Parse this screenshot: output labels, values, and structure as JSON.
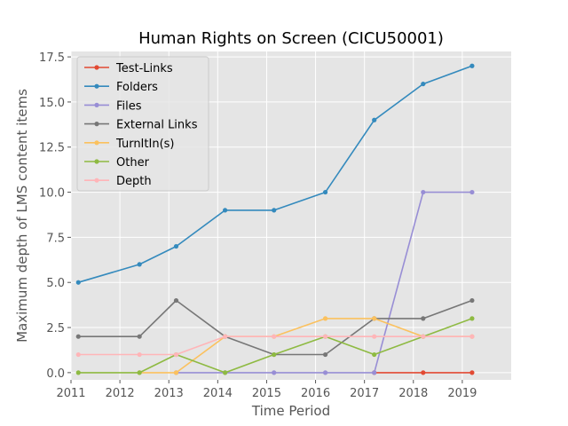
{
  "chart_data": {
    "type": "line",
    "title": "Human Rights on Screen (CICU50001)",
    "xlabel": "Time Period",
    "ylabel": "Maximum depth of LMS content items",
    "xlim": [
      2011,
      2020
    ],
    "ylim": [
      -0.4,
      17.8
    ],
    "xticks": [
      2011,
      2012,
      2013,
      2014,
      2015,
      2016,
      2017,
      2018,
      2019
    ],
    "xtick_labels": [
      "2011",
      "2012",
      "2013",
      "2014",
      "2015",
      "2016",
      "2017",
      "2018",
      "2019"
    ],
    "yticks": [
      0.0,
      2.5,
      5.0,
      7.5,
      10.0,
      12.5,
      15.0,
      17.5
    ],
    "ytick_labels": [
      "0.0",
      "2.5",
      "5.0",
      "7.5",
      "10.0",
      "12.5",
      "15.0",
      "17.5"
    ],
    "grid": true,
    "legend_position": "top-left",
    "x": [
      2011.15,
      2012.4,
      2013.15,
      2014.15,
      2015.15,
      2016.2,
      2017.2,
      2018.2,
      2019.2
    ],
    "series": [
      {
        "name": "Test-Links",
        "color": "#E24A33",
        "points": [
          [
            2017.2,
            0
          ],
          [
            2018.2,
            0
          ],
          [
            2019.2,
            0
          ]
        ]
      },
      {
        "name": "Folders",
        "color": "#348ABD",
        "points": [
          [
            2011.15,
            5
          ],
          [
            2012.4,
            6
          ],
          [
            2013.15,
            7
          ],
          [
            2014.15,
            9
          ],
          [
            2015.15,
            9
          ],
          [
            2016.2,
            10
          ],
          [
            2017.2,
            14
          ],
          [
            2018.2,
            16
          ],
          [
            2019.2,
            17
          ]
        ]
      },
      {
        "name": "Files",
        "color": "#988ED5",
        "points": [
          [
            2013.15,
            0
          ],
          [
            2014.15,
            0
          ],
          [
            2015.15,
            0
          ],
          [
            2016.2,
            0
          ],
          [
            2017.2,
            0
          ],
          [
            2018.2,
            10
          ],
          [
            2019.2,
            10
          ]
        ]
      },
      {
        "name": "External Links",
        "color": "#777777",
        "points": [
          [
            2011.15,
            2
          ],
          [
            2012.4,
            2
          ],
          [
            2013.15,
            4
          ],
          [
            2014.15,
            2
          ],
          [
            2015.15,
            1
          ],
          [
            2016.2,
            1
          ],
          [
            2017.2,
            3
          ],
          [
            2018.2,
            3
          ],
          [
            2019.2,
            4
          ]
        ]
      },
      {
        "name": "TurnItIn(s)",
        "color": "#FBC15E",
        "points": [
          [
            2012.4,
            0
          ],
          [
            2013.15,
            0
          ],
          [
            2014.15,
            2
          ],
          [
            2015.15,
            2
          ],
          [
            2016.2,
            3
          ],
          [
            2017.2,
            3
          ],
          [
            2018.2,
            2
          ],
          [
            2019.2,
            2
          ]
        ]
      },
      {
        "name": "Other",
        "color": "#8EBA42",
        "points": [
          [
            2011.15,
            0
          ],
          [
            2012.4,
            0
          ],
          [
            2013.15,
            1
          ],
          [
            2014.15,
            0
          ],
          [
            2015.15,
            1
          ],
          [
            2016.2,
            2
          ],
          [
            2017.2,
            1
          ],
          [
            2018.2,
            2
          ],
          [
            2019.2,
            3
          ]
        ]
      },
      {
        "name": "Depth",
        "color": "#FFB5B8",
        "points": [
          [
            2011.15,
            1
          ],
          [
            2012.4,
            1
          ],
          [
            2013.15,
            1
          ],
          [
            2014.15,
            2
          ],
          [
            2015.15,
            2
          ],
          [
            2016.2,
            2
          ],
          [
            2017.2,
            2
          ],
          [
            2018.2,
            2
          ],
          [
            2019.2,
            2
          ]
        ]
      }
    ]
  }
}
